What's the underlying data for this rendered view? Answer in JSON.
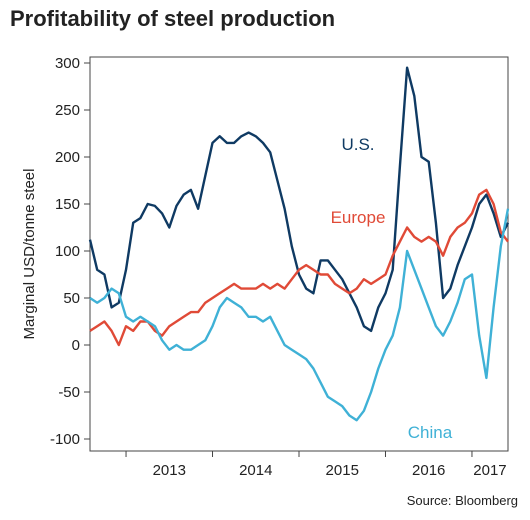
{
  "page": {
    "title": "Profitability of steel production",
    "source": "Source: Bloomberg"
  },
  "chart_data": {
    "type": "line",
    "title": "Profitability of steel production",
    "ylabel": "Marginal USD/tonne steel",
    "xlabel": "",
    "ylim": [
      -100,
      300
    ],
    "xlim": [
      "2012-08",
      "2017-06"
    ],
    "y_ticks": [
      300,
      250,
      200,
      150,
      100,
      50,
      0,
      -50,
      -100
    ],
    "x_tick_labels": [
      "2013",
      "2014",
      "2015",
      "2016",
      "2017"
    ],
    "grid": false,
    "legend": "inline labels",
    "series": [
      {
        "name": "U.S.",
        "color": "#0f3a63",
        "points": [
          [
            "2012-08",
            112
          ],
          [
            "2012-09",
            80
          ],
          [
            "2012-10",
            75
          ],
          [
            "2012-11",
            40
          ],
          [
            "2012-12",
            45
          ],
          [
            "2013-01",
            80
          ],
          [
            "2013-02",
            130
          ],
          [
            "2013-03",
            135
          ],
          [
            "2013-04",
            150
          ],
          [
            "2013-05",
            148
          ],
          [
            "2013-06",
            140
          ],
          [
            "2013-07",
            125
          ],
          [
            "2013-08",
            148
          ],
          [
            "2013-09",
            160
          ],
          [
            "2013-10",
            165
          ],
          [
            "2013-11",
            145
          ],
          [
            "2013-12",
            180
          ],
          [
            "2014-01",
            215
          ],
          [
            "2014-02",
            222
          ],
          [
            "2014-03",
            215
          ],
          [
            "2014-04",
            215
          ],
          [
            "2014-05",
            222
          ],
          [
            "2014-06",
            226
          ],
          [
            "2014-07",
            222
          ],
          [
            "2014-08",
            215
          ],
          [
            "2014-09",
            205
          ],
          [
            "2014-10",
            175
          ],
          [
            "2014-11",
            145
          ],
          [
            "2014-12",
            105
          ],
          [
            "2015-01",
            75
          ],
          [
            "2015-02",
            60
          ],
          [
            "2015-03",
            55
          ],
          [
            "2015-04",
            90
          ],
          [
            "2015-05",
            90
          ],
          [
            "2015-06",
            80
          ],
          [
            "2015-07",
            70
          ],
          [
            "2015-08",
            55
          ],
          [
            "2015-09",
            40
          ],
          [
            "2015-10",
            20
          ],
          [
            "2015-11",
            15
          ],
          [
            "2015-12",
            40
          ],
          [
            "2016-01",
            55
          ],
          [
            "2016-02",
            80
          ],
          [
            "2016-03",
            190
          ],
          [
            "2016-04",
            295
          ],
          [
            "2016-05",
            265
          ],
          [
            "2016-06",
            200
          ],
          [
            "2016-07",
            195
          ],
          [
            "2016-08",
            130
          ],
          [
            "2016-09",
            50
          ],
          [
            "2016-10",
            60
          ],
          [
            "2016-11",
            85
          ],
          [
            "2016-12",
            105
          ],
          [
            "2017-01",
            125
          ],
          [
            "2017-02",
            150
          ],
          [
            "2017-03",
            160
          ],
          [
            "2017-04",
            140
          ],
          [
            "2017-05",
            115
          ],
          [
            "2017-06",
            130
          ]
        ]
      },
      {
        "name": "Europe",
        "color": "#e04a37",
        "points": [
          [
            "2012-08",
            15
          ],
          [
            "2012-09",
            20
          ],
          [
            "2012-10",
            25
          ],
          [
            "2012-11",
            15
          ],
          [
            "2012-12",
            0
          ],
          [
            "2013-01",
            20
          ],
          [
            "2013-02",
            15
          ],
          [
            "2013-03",
            25
          ],
          [
            "2013-04",
            25
          ],
          [
            "2013-05",
            15
          ],
          [
            "2013-06",
            10
          ],
          [
            "2013-07",
            20
          ],
          [
            "2013-08",
            25
          ],
          [
            "2013-09",
            30
          ],
          [
            "2013-10",
            35
          ],
          [
            "2013-11",
            35
          ],
          [
            "2013-12",
            45
          ],
          [
            "2014-01",
            50
          ],
          [
            "2014-02",
            55
          ],
          [
            "2014-03",
            60
          ],
          [
            "2014-04",
            65
          ],
          [
            "2014-05",
            60
          ],
          [
            "2014-06",
            60
          ],
          [
            "2014-07",
            60
          ],
          [
            "2014-08",
            65
          ],
          [
            "2014-09",
            60
          ],
          [
            "2014-10",
            65
          ],
          [
            "2014-11",
            60
          ],
          [
            "2014-12",
            70
          ],
          [
            "2015-01",
            80
          ],
          [
            "2015-02",
            85
          ],
          [
            "2015-03",
            80
          ],
          [
            "2015-04",
            75
          ],
          [
            "2015-05",
            75
          ],
          [
            "2015-06",
            65
          ],
          [
            "2015-07",
            60
          ],
          [
            "2015-08",
            55
          ],
          [
            "2015-09",
            60
          ],
          [
            "2015-10",
            70
          ],
          [
            "2015-11",
            65
          ],
          [
            "2015-12",
            70
          ],
          [
            "2016-01",
            75
          ],
          [
            "2016-02",
            95
          ],
          [
            "2016-03",
            110
          ],
          [
            "2016-04",
            125
          ],
          [
            "2016-05",
            115
          ],
          [
            "2016-06",
            110
          ],
          [
            "2016-07",
            115
          ],
          [
            "2016-08",
            110
          ],
          [
            "2016-09",
            95
          ],
          [
            "2016-10",
            115
          ],
          [
            "2016-11",
            125
          ],
          [
            "2016-12",
            130
          ],
          [
            "2017-01",
            140
          ],
          [
            "2017-02",
            160
          ],
          [
            "2017-03",
            165
          ],
          [
            "2017-04",
            150
          ],
          [
            "2017-05",
            120
          ],
          [
            "2017-06",
            110
          ]
        ]
      },
      {
        "name": "China",
        "color": "#3fb1d6",
        "points": [
          [
            "2012-08",
            50
          ],
          [
            "2012-09",
            45
          ],
          [
            "2012-10",
            50
          ],
          [
            "2012-11",
            60
          ],
          [
            "2012-12",
            55
          ],
          [
            "2013-01",
            30
          ],
          [
            "2013-02",
            25
          ],
          [
            "2013-03",
            30
          ],
          [
            "2013-04",
            25
          ],
          [
            "2013-05",
            20
          ],
          [
            "2013-06",
            5
          ],
          [
            "2013-07",
            -5
          ],
          [
            "2013-08",
            0
          ],
          [
            "2013-09",
            -5
          ],
          [
            "2013-10",
            -5
          ],
          [
            "2013-11",
            0
          ],
          [
            "2013-12",
            5
          ],
          [
            "2014-01",
            20
          ],
          [
            "2014-02",
            40
          ],
          [
            "2014-03",
            50
          ],
          [
            "2014-04",
            45
          ],
          [
            "2014-05",
            40
          ],
          [
            "2014-06",
            30
          ],
          [
            "2014-07",
            30
          ],
          [
            "2014-08",
            25
          ],
          [
            "2014-09",
            30
          ],
          [
            "2014-10",
            15
          ],
          [
            "2014-11",
            0
          ],
          [
            "2014-12",
            -5
          ],
          [
            "2015-01",
            -10
          ],
          [
            "2015-02",
            -15
          ],
          [
            "2015-03",
            -25
          ],
          [
            "2015-04",
            -40
          ],
          [
            "2015-05",
            -55
          ],
          [
            "2015-06",
            -60
          ],
          [
            "2015-07",
            -65
          ],
          [
            "2015-08",
            -75
          ],
          [
            "2015-09",
            -80
          ],
          [
            "2015-10",
            -70
          ],
          [
            "2015-11",
            -50
          ],
          [
            "2015-12",
            -25
          ],
          [
            "2016-01",
            -5
          ],
          [
            "2016-02",
            10
          ],
          [
            "2016-03",
            40
          ],
          [
            "2016-04",
            100
          ],
          [
            "2016-05",
            80
          ],
          [
            "2016-06",
            60
          ],
          [
            "2016-07",
            40
          ],
          [
            "2016-08",
            20
          ],
          [
            "2016-09",
            10
          ],
          [
            "2016-10",
            25
          ],
          [
            "2016-11",
            45
          ],
          [
            "2016-12",
            70
          ],
          [
            "2017-01",
            75
          ],
          [
            "2017-02",
            10
          ],
          [
            "2017-03",
            -35
          ],
          [
            "2017-04",
            40
          ],
          [
            "2017-05",
            105
          ],
          [
            "2017-06",
            145
          ]
        ]
      }
    ]
  }
}
